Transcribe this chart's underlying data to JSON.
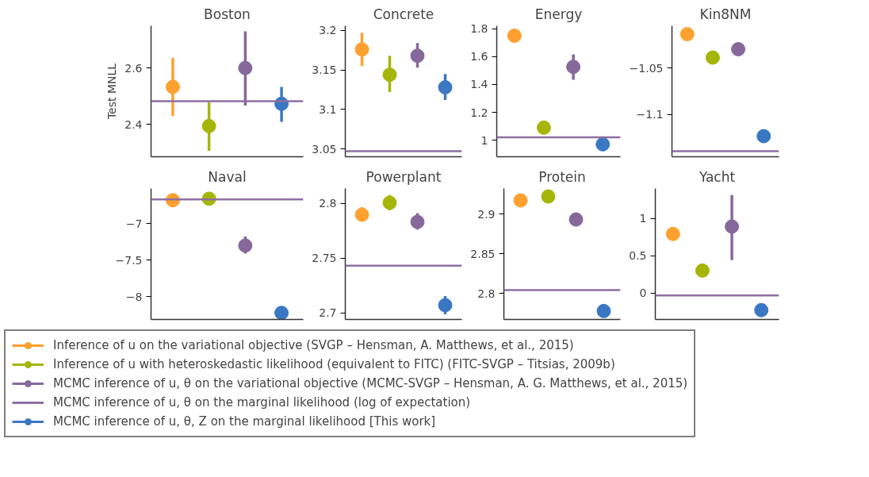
{
  "chart_data": [
    {
      "type": "scatter",
      "title": "Boston",
      "ylabel": "Test MNLL",
      "categories": [
        null,
        null,
        null,
        null
      ],
      "ylim": [
        2.285,
        2.75
      ],
      "yticks": [
        2.4,
        2.6
      ],
      "marker": "circle",
      "legend": "bottom",
      "series": [
        {
          "name": "Inference of u on the variational objective (SVGP – Hensman, A. Matthews, et al., 2015)",
          "color": "#ffa02f",
          "values": [
            2.533,
            null,
            null,
            null
          ],
          "errors": [
            [
              2.43,
              2.636
            ],
            null,
            null,
            null
          ]
        },
        {
          "name": "Inference of u with heteroskedastic likelihood (equivalent to FITC) (FITC-SVGP – Titsias, 2009b)",
          "color": "#a5b50a",
          "values": [
            null,
            2.394,
            null,
            null
          ],
          "errors": [
            null,
            [
              2.306,
              2.479
            ],
            null,
            null
          ]
        },
        {
          "name": "MCMC inference of u, θ on the variational objective (MCMC-SVGP – Hensman, A. G. Matthews, et al., 2015)",
          "color": "#86689b",
          "values": [
            null,
            null,
            2.6,
            null
          ],
          "errors": [
            null,
            null,
            [
              2.467,
              2.73
            ],
            null
          ]
        },
        {
          "name": "MCMC inference of u, θ, Z on the marginal likelihood [This work]",
          "color": "#3a78c3",
          "values": [
            null,
            null,
            null,
            2.473
          ],
          "errors": [
            null,
            null,
            null,
            [
              2.409,
              2.533
            ]
          ]
        }
      ],
      "ref_lines": [
        {
          "axis": "y",
          "value": 2.482,
          "color": "#8e6fa3",
          "label": "MCMC inference of u, θ on the marginal likelihood (log of expectation)"
        }
      ]
    },
    {
      "type": "scatter",
      "title": "Concrete",
      "categories": [
        null,
        null,
        null,
        null
      ],
      "ylim": [
        3.04,
        3.206
      ],
      "yticks": [
        3.05,
        3.1,
        3.15,
        3.2
      ],
      "marker": "circle",
      "series": [
        {
          "color": "#ffa02f",
          "values": [
            3.176,
            null,
            null,
            null
          ],
          "errors": [
            [
              3.155,
              3.197
            ],
            null,
            null,
            null
          ]
        },
        {
          "color": "#a5b50a",
          "values": [
            null,
            3.144,
            null,
            null
          ],
          "errors": [
            null,
            [
              3.122,
              3.168
            ],
            null,
            null
          ]
        },
        {
          "color": "#86689b",
          "values": [
            null,
            null,
            3.168,
            null
          ],
          "errors": [
            null,
            null,
            [
              3.153,
              3.184
            ],
            null
          ]
        },
        {
          "color": "#3a78c3",
          "values": [
            null,
            null,
            null,
            3.128
          ],
          "errors": [
            null,
            null,
            null,
            [
              3.112,
              3.145
            ]
          ]
        }
      ],
      "ref_lines": [
        {
          "axis": "y",
          "value": 3.047,
          "color": "#8e6fa3"
        }
      ]
    },
    {
      "type": "scatter",
      "title": "Energy",
      "categories": [
        null,
        null,
        null,
        null
      ],
      "ylim": [
        0.883,
        1.82
      ],
      "yticks": [
        1,
        1.2,
        1.4,
        1.6,
        1.8
      ],
      "marker": "circle",
      "series": [
        {
          "color": "#ffa02f",
          "values": [
            1.749,
            null,
            null,
            null
          ]
        },
        {
          "color": "#a5b50a",
          "values": [
            null,
            1.091,
            null,
            null
          ]
        },
        {
          "color": "#86689b",
          "values": [
            null,
            null,
            1.526,
            null
          ],
          "errors": [
            null,
            null,
            [
              1.434,
              1.615
            ],
            null
          ]
        },
        {
          "color": "#3a78c3",
          "values": [
            null,
            null,
            null,
            0.972
          ]
        }
      ],
      "ref_lines": [
        {
          "axis": "y",
          "value": 1.022,
          "color": "#8e6fa3"
        }
      ]
    },
    {
      "type": "scatter",
      "title": "Kin8NM",
      "categories": [
        null,
        null,
        null,
        null
      ],
      "ylim": [
        -1.145,
        -1.005
      ],
      "yticks": [
        {
          "value": -1.1,
          "label": "−1.1"
        },
        {
          "value": -1.05,
          "label": "−1.05"
        }
      ],
      "marker": "circle",
      "series": [
        {
          "color": "#ffa02f",
          "values": [
            -1.014,
            null,
            null,
            null
          ]
        },
        {
          "color": "#a5b50a",
          "values": [
            null,
            -1.039,
            null,
            null
          ]
        },
        {
          "color": "#86689b",
          "values": [
            null,
            null,
            -1.03,
            null
          ]
        },
        {
          "color": "#3a78c3",
          "values": [
            null,
            null,
            null,
            -1.123
          ]
        }
      ],
      "ref_lines": [
        {
          "axis": "y",
          "value": -1.139,
          "color": "#8e6fa3"
        }
      ]
    },
    {
      "type": "scatter",
      "title": "Naval",
      "categories": [
        null,
        null,
        null,
        null
      ],
      "ylim": [
        -8.31,
        -6.52
      ],
      "yticks": [
        {
          "value": -8,
          "label": "−8"
        },
        {
          "value": -7.5,
          "label": "−7.5"
        },
        {
          "value": -7,
          "label": "−7"
        }
      ],
      "marker": "circle",
      "series": [
        {
          "color": "#ffa02f",
          "values": [
            -6.68,
            null,
            null,
            null
          ]
        },
        {
          "color": "#a5b50a",
          "values": [
            null,
            -6.66,
            null,
            null
          ]
        },
        {
          "color": "#86689b",
          "values": [
            null,
            null,
            -7.3,
            null
          ],
          "errors": [
            null,
            null,
            [
              -7.41,
              -7.175
            ],
            null
          ]
        },
        {
          "color": "#3a78c3",
          "values": [
            null,
            null,
            null,
            -8.22
          ]
        }
      ],
      "ref_lines": [
        {
          "axis": "y",
          "value": -6.67,
          "color": "#8e6fa3"
        }
      ]
    },
    {
      "type": "scatter",
      "title": "Powerplant",
      "categories": [
        null,
        null,
        null,
        null
      ],
      "ylim": [
        2.694,
        2.8135
      ],
      "yticks": [
        2.7,
        2.75,
        2.8
      ],
      "marker": "circle",
      "series": [
        {
          "color": "#ffa02f",
          "values": [
            2.7896,
            null,
            null,
            null
          ],
          "errors": [
            [
              2.7836,
              2.7964
            ],
            null,
            null,
            null
          ]
        },
        {
          "color": "#a5b50a",
          "values": [
            null,
            2.8005,
            null,
            null
          ],
          "errors": [
            null,
            [
              2.7935,
              2.8076
            ],
            null,
            null
          ]
        },
        {
          "color": "#86689b",
          "values": [
            null,
            null,
            2.783,
            null
          ],
          "errors": [
            null,
            null,
            [
              2.776,
              2.791
            ],
            null
          ]
        },
        {
          "color": "#3a78c3",
          "values": [
            null,
            null,
            null,
            2.707
          ],
          "errors": [
            null,
            null,
            null,
            [
              2.6987,
              2.7153
            ]
          ]
        }
      ],
      "ref_lines": [
        {
          "axis": "y",
          "value": 2.743,
          "color": "#8e6fa3"
        }
      ]
    },
    {
      "type": "scatter",
      "title": "Protein",
      "categories": [
        null,
        null,
        null,
        null
      ],
      "ylim": [
        2.7674,
        2.932
      ],
      "yticks": [
        2.8,
        2.85,
        2.9
      ],
      "marker": "circle",
      "series": [
        {
          "color": "#ffa02f",
          "values": [
            2.917,
            null,
            null,
            null
          ]
        },
        {
          "color": "#a5b50a",
          "values": [
            null,
            2.922,
            null,
            null
          ]
        },
        {
          "color": "#86689b",
          "values": [
            null,
            null,
            2.893,
            null
          ]
        },
        {
          "color": "#3a78c3",
          "values": [
            null,
            null,
            null,
            2.778
          ]
        }
      ],
      "ref_lines": [
        {
          "axis": "y",
          "value": 2.8043,
          "color": "#8e6fa3"
        }
      ]
    },
    {
      "type": "scatter",
      "title": "Yacht",
      "categories": [
        null,
        null,
        null,
        null
      ],
      "ylim": [
        -0.355,
        1.4
      ],
      "yticks": [
        0,
        0.5,
        1
      ],
      "marker": "circle",
      "series": [
        {
          "color": "#ffa02f",
          "values": [
            0.79,
            null,
            null,
            null
          ]
        },
        {
          "color": "#a5b50a",
          "values": [
            null,
            0.3,
            null,
            null
          ]
        },
        {
          "color": "#86689b",
          "values": [
            null,
            null,
            0.89,
            null
          ],
          "errors": [
            null,
            null,
            [
              0.44,
              1.313
            ],
            null
          ]
        },
        {
          "color": "#3a78c3",
          "values": [
            null,
            null,
            null,
            -0.23
          ]
        }
      ],
      "ref_lines": [
        {
          "axis": "y",
          "value": -0.034,
          "color": "#8e6fa3"
        }
      ]
    }
  ]
}
